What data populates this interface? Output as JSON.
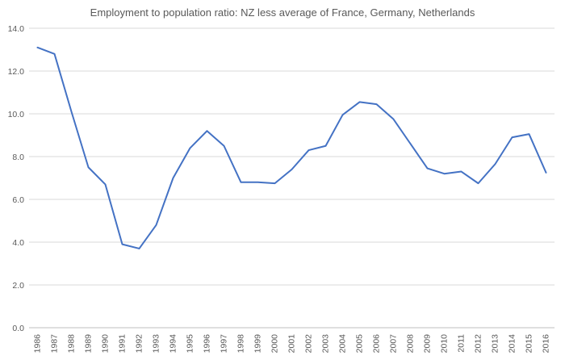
{
  "chart_data": {
    "type": "line",
    "title": "Employment to population ratio: NZ less average of France, Germany, Netherlands",
    "xlabel": "",
    "ylabel": "",
    "ylim": [
      0,
      14
    ],
    "ytick_step": 2,
    "ytick_labels": [
      "0.0",
      "2.0",
      "4.0",
      "6.0",
      "8.0",
      "10.0",
      "12.0",
      "14.0"
    ],
    "grid": true,
    "legend": "none",
    "categories": [
      "1986",
      "1987",
      "1988",
      "1989",
      "1990",
      "1991",
      "1992",
      "1993",
      "1994",
      "1995",
      "1996",
      "1997",
      "1998",
      "1999",
      "2000",
      "2001",
      "2002",
      "2003",
      "2004",
      "2005",
      "2006",
      "2007",
      "2008",
      "2009",
      "2010",
      "2011",
      "2012",
      "2013",
      "2014",
      "2015",
      "2016"
    ],
    "series": [
      {
        "name": "NZ less average of France, Germany, Netherlands",
        "color": "#4472c4",
        "values": [
          13.1,
          12.8,
          10.1,
          7.5,
          6.7,
          3.9,
          3.7,
          4.8,
          7.0,
          8.4,
          9.2,
          8.5,
          6.8,
          6.8,
          6.75,
          7.4,
          8.3,
          8.5,
          9.95,
          10.55,
          10.45,
          9.75,
          8.6,
          7.45,
          7.2,
          7.3,
          6.75,
          7.65,
          8.9,
          9.05,
          7.25
        ]
      }
    ]
  }
}
